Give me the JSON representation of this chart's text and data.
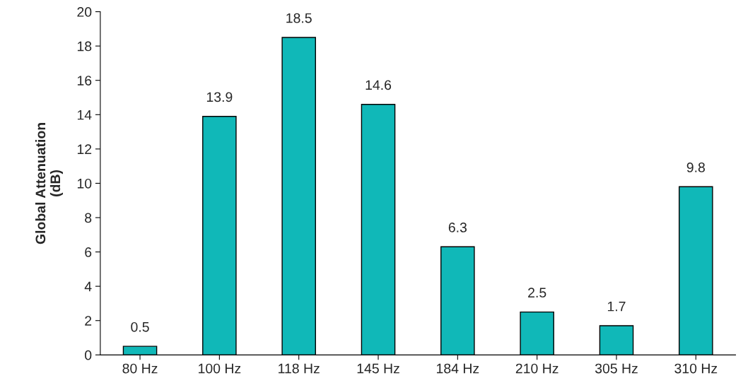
{
  "chart_data": {
    "type": "bar",
    "ylabel": "Global Attenuation\n(dB)",
    "categories": [
      "80 Hz",
      "100 Hz",
      "118 Hz",
      "145 Hz",
      "184 Hz",
      "210 Hz",
      "305 Hz",
      "310 Hz"
    ],
    "values": [
      0.5,
      13.9,
      18.5,
      14.6,
      6.3,
      2.5,
      1.7,
      9.8
    ],
    "color": "#10b8b8",
    "ylim": [
      0,
      20
    ],
    "yticks": [
      0,
      2,
      4,
      6,
      8,
      10,
      12,
      14,
      16,
      18,
      20
    ],
    "data_labels": true,
    "grid": false,
    "legend": false
  }
}
